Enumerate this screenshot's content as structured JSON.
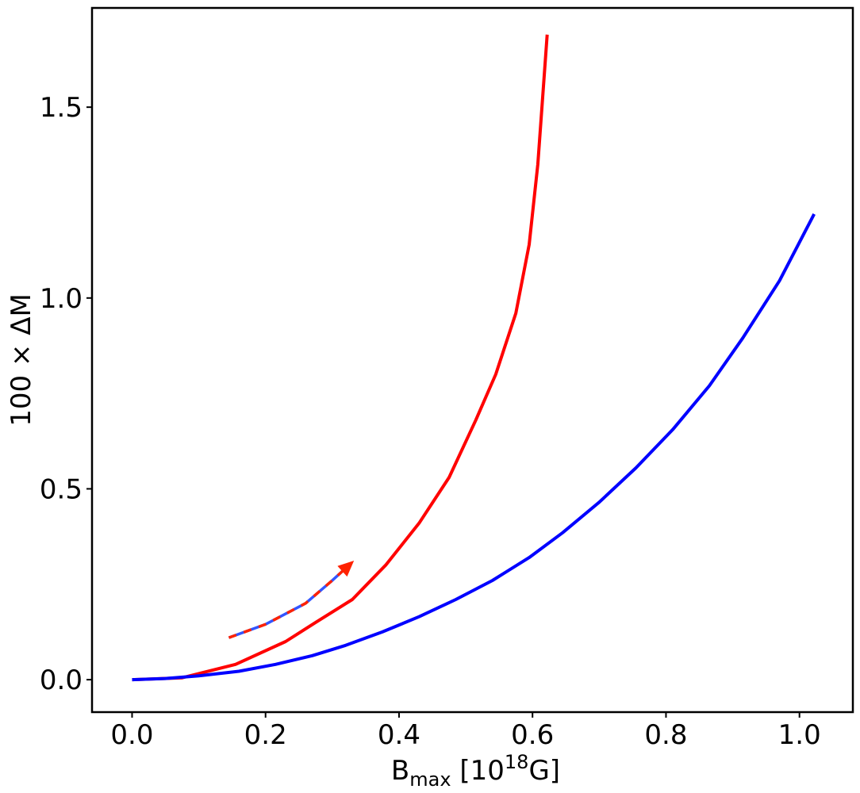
{
  "chart_data": {
    "type": "line",
    "title": "",
    "xlabel": {
      "base": "B",
      "sub": "max",
      "pre": " [10",
      "sup": "18",
      "post": "G]"
    },
    "ylabel": "100 × ΔM",
    "xlim": [
      -0.06,
      1.08
    ],
    "ylim": [
      -0.085,
      1.76
    ],
    "xticks": [
      0.0,
      0.2,
      0.4,
      0.6,
      0.8,
      1.0
    ],
    "xtick_labels": [
      "0.0",
      "0.2",
      "0.4",
      "0.6",
      "0.8",
      "1.0"
    ],
    "yticks": [
      0.0,
      0.5,
      1.0,
      1.5
    ],
    "ytick_labels": [
      "0.0",
      "0.5",
      "1.0",
      "1.5"
    ],
    "grid": false,
    "series": [
      {
        "color": "#ff0000",
        "x": [
          0.0,
          0.075,
          0.155,
          0.23,
          0.275,
          0.33,
          0.38,
          0.43,
          0.475,
          0.515,
          0.545,
          0.575,
          0.595,
          0.608,
          0.622
        ],
        "y": [
          0.0,
          0.005,
          0.04,
          0.1,
          0.15,
          0.21,
          0.3,
          0.41,
          0.53,
          0.68,
          0.8,
          0.96,
          1.14,
          1.35,
          1.69
        ]
      },
      {
        "color": "#0000ff",
        "x": [
          0.0,
          0.05,
          0.1,
          0.16,
          0.215,
          0.27,
          0.32,
          0.375,
          0.43,
          0.485,
          0.54,
          0.595,
          0.645,
          0.7,
          0.755,
          0.81,
          0.865,
          0.915,
          0.97,
          1.022
        ],
        "y": [
          0.0,
          0.003,
          0.01,
          0.022,
          0.04,
          0.063,
          0.09,
          0.125,
          0.165,
          0.21,
          0.26,
          0.32,
          0.385,
          0.465,
          0.555,
          0.655,
          0.77,
          0.895,
          1.045,
          1.22
        ]
      }
    ],
    "annotation": {
      "type": "arrow",
      "style": "dashed red/blue",
      "colors": [
        "#ff2200",
        "#3355ff"
      ],
      "points": [
        [
          0.145,
          0.11
        ],
        [
          0.2,
          0.145
        ],
        [
          0.26,
          0.2
        ],
        [
          0.3,
          0.26
        ],
        [
          0.322,
          0.295
        ]
      ],
      "head_color": "#ff2200"
    }
  }
}
